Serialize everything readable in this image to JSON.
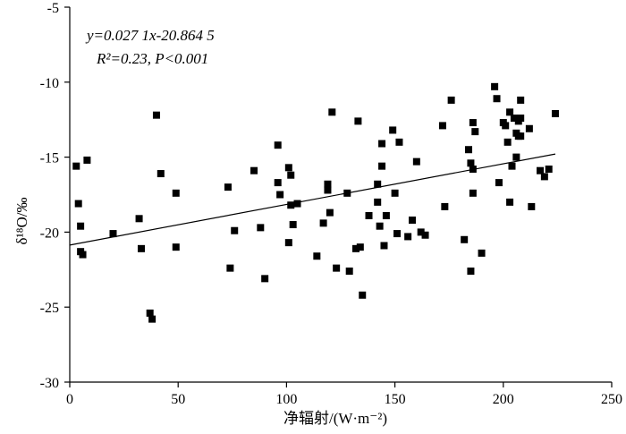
{
  "chart_data": {
    "type": "scatter",
    "xlabel": "净辐射/(W·m⁻²)",
    "ylabel": "δ¹⁸O/‰",
    "xlim": [
      0,
      250
    ],
    "ylim": [
      -30,
      -5
    ],
    "x_ticks": [
      0,
      50,
      100,
      150,
      200,
      250
    ],
    "y_ticks": [
      -30,
      -25,
      -20,
      -15,
      -10,
      -5
    ],
    "grid": false,
    "annotations": {
      "equation": "y=0.027 1x-20.864 5",
      "stats": "R²=0.23, P<0.001"
    },
    "regression": {
      "slope": 0.0271,
      "intercept": -20.8645,
      "x_range": [
        0,
        224
      ]
    },
    "points": [
      {
        "x": 3,
        "y": -15.6
      },
      {
        "x": 4,
        "y": -18.1
      },
      {
        "x": 5,
        "y": -19.6
      },
      {
        "x": 5,
        "y": -21.3
      },
      {
        "x": 6,
        "y": -21.5
      },
      {
        "x": 8,
        "y": -15.2
      },
      {
        "x": 20,
        "y": -20.1
      },
      {
        "x": 32,
        "y": -19.1
      },
      {
        "x": 33,
        "y": -21.1
      },
      {
        "x": 37,
        "y": -25.4
      },
      {
        "x": 38,
        "y": -25.8
      },
      {
        "x": 40,
        "y": -12.2
      },
      {
        "x": 42,
        "y": -16.1
      },
      {
        "x": 49,
        "y": -17.4
      },
      {
        "x": 49,
        "y": -21.0
      },
      {
        "x": 73,
        "y": -17.0
      },
      {
        "x": 74,
        "y": -22.4
      },
      {
        "x": 76,
        "y": -19.9
      },
      {
        "x": 85,
        "y": -15.9
      },
      {
        "x": 88,
        "y": -19.7
      },
      {
        "x": 90,
        "y": -23.1
      },
      {
        "x": 96,
        "y": -14.2
      },
      {
        "x": 96,
        "y": -16.7
      },
      {
        "x": 97,
        "y": -17.5
      },
      {
        "x": 101,
        "y": -15.7
      },
      {
        "x": 101,
        "y": -20.7
      },
      {
        "x": 102,
        "y": -16.2
      },
      {
        "x": 102,
        "y": -18.2
      },
      {
        "x": 103,
        "y": -19.5
      },
      {
        "x": 105,
        "y": -18.1
      },
      {
        "x": 114,
        "y": -21.6
      },
      {
        "x": 117,
        "y": -19.4
      },
      {
        "x": 119,
        "y": -16.8
      },
      {
        "x": 119,
        "y": -17.2
      },
      {
        "x": 120,
        "y": -18.7
      },
      {
        "x": 121,
        "y": -12.0
      },
      {
        "x": 123,
        "y": -22.4
      },
      {
        "x": 128,
        "y": -17.4
      },
      {
        "x": 129,
        "y": -22.6
      },
      {
        "x": 132,
        "y": -21.1
      },
      {
        "x": 133,
        "y": -12.6
      },
      {
        "x": 134,
        "y": -21.0
      },
      {
        "x": 135,
        "y": -24.2
      },
      {
        "x": 138,
        "y": -18.9
      },
      {
        "x": 142,
        "y": -16.8
      },
      {
        "x": 142,
        "y": -18.0
      },
      {
        "x": 143,
        "y": -19.6
      },
      {
        "x": 144,
        "y": -14.1
      },
      {
        "x": 144,
        "y": -15.6
      },
      {
        "x": 145,
        "y": -20.9
      },
      {
        "x": 146,
        "y": -18.9
      },
      {
        "x": 149,
        "y": -13.2
      },
      {
        "x": 150,
        "y": -17.4
      },
      {
        "x": 151,
        "y": -20.1
      },
      {
        "x": 152,
        "y": -14.0
      },
      {
        "x": 156,
        "y": -20.3
      },
      {
        "x": 158,
        "y": -19.2
      },
      {
        "x": 160,
        "y": -15.3
      },
      {
        "x": 162,
        "y": -20.0
      },
      {
        "x": 164,
        "y": -20.2
      },
      {
        "x": 172,
        "y": -12.9
      },
      {
        "x": 173,
        "y": -18.3
      },
      {
        "x": 176,
        "y": -11.2
      },
      {
        "x": 182,
        "y": -20.5
      },
      {
        "x": 184,
        "y": -14.5
      },
      {
        "x": 185,
        "y": -15.4
      },
      {
        "x": 185,
        "y": -22.6
      },
      {
        "x": 186,
        "y": -12.7
      },
      {
        "x": 186,
        "y": -15.8
      },
      {
        "x": 186,
        "y": -17.4
      },
      {
        "x": 187,
        "y": -13.3
      },
      {
        "x": 190,
        "y": -21.4
      },
      {
        "x": 196,
        "y": -10.3
      },
      {
        "x": 197,
        "y": -11.1
      },
      {
        "x": 198,
        "y": -16.7
      },
      {
        "x": 200,
        "y": -12.7
      },
      {
        "x": 201,
        "y": -12.9
      },
      {
        "x": 202,
        "y": -14.0
      },
      {
        "x": 203,
        "y": -12.0
      },
      {
        "x": 203,
        "y": -18.0
      },
      {
        "x": 204,
        "y": -15.6
      },
      {
        "x": 205,
        "y": -12.4
      },
      {
        "x": 206,
        "y": -13.4
      },
      {
        "x": 206,
        "y": -15.0
      },
      {
        "x": 207,
        "y": -12.6
      },
      {
        "x": 207,
        "y": -13.6
      },
      {
        "x": 208,
        "y": -11.2
      },
      {
        "x": 208,
        "y": -12.4
      },
      {
        "x": 208,
        "y": -13.6
      },
      {
        "x": 212,
        "y": -13.1
      },
      {
        "x": 213,
        "y": -18.3
      },
      {
        "x": 217,
        "y": -15.9
      },
      {
        "x": 219,
        "y": -16.3
      },
      {
        "x": 221,
        "y": -15.8
      },
      {
        "x": 224,
        "y": -12.1
      }
    ]
  }
}
